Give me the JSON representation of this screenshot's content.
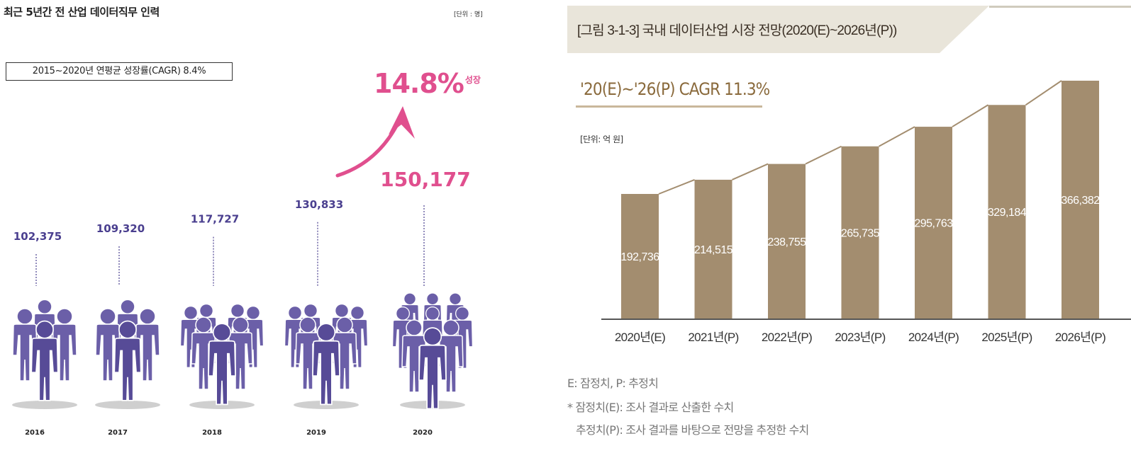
{
  "left": {
    "title": "최근 5년간 전 산업 데이터직무 인력",
    "unit": "[단위 : 명]",
    "cagr_box": "2015~2020년 연평균 성장률(CAGR) 8.4%",
    "growth_pct": "14.8%",
    "growth_word": "성장",
    "colors": {
      "people": "#6b5fa8",
      "people_dark": "#574b97",
      "highlight": "#e04f8e",
      "value": "#4a3f8f"
    }
  },
  "right": {
    "title": "[그림 3-1-3] 국내 데이터산업 시장 전망(2020(E)~2026년(P))",
    "cagr": "'20(E)~'26(P) CAGR 11.3%",
    "unit": "[단위: 억 원]",
    "notes": [
      "E: 잠정치, P: 추정치",
      "* 잠정치(E): 조사 결과로 산출한 수치",
      "추정치(P): 조사 결과를 바탕으로 전망을 추정한 수치"
    ],
    "colors": {
      "bar": "#a38d6f",
      "banner": "#e9e5da",
      "accent": "#8a6a3c"
    }
  },
  "chart_data": [
    {
      "type": "bar",
      "title": "최근 5년간 전 산업 데이터직무 인력",
      "categories": [
        "2016",
        "2017",
        "2018",
        "2019",
        "2020"
      ],
      "values": [
        102375,
        109320,
        117727,
        130833,
        150177
      ],
      "labels": [
        "102,375",
        "109,320",
        "117,727",
        "130,833",
        "150,177"
      ],
      "highlight_index": 4
    },
    {
      "type": "bar",
      "title": "[그림 3-1-3] 국내 데이터산업 시장 전망(2020(E)~2026년(P))",
      "categories": [
        "2020년(E)",
        "2021년(P)",
        "2022년(P)",
        "2023년(P)",
        "2024년(P)",
        "2025년(P)",
        "2026년(P)"
      ],
      "values": [
        192736,
        214515,
        238755,
        265735,
        295763,
        329184,
        366382
      ],
      "labels": [
        "192,736",
        "214,515",
        "238,755",
        "265,735",
        "295,763",
        "329,184",
        "366,382"
      ],
      "ylim": [
        0,
        400000
      ],
      "grid": false
    }
  ]
}
